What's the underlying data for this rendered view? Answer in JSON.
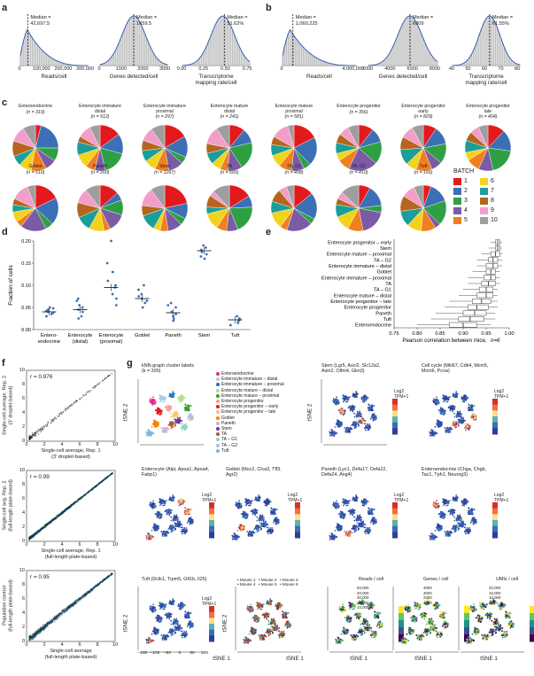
{
  "panel_a": {
    "label": "a",
    "hist1": {
      "median": "Median =\n42,697.5",
      "xlabel": "Reads/cell",
      "ticks": [
        "0",
        "100,000",
        "200,000",
        "300,000"
      ]
    },
    "hist2": {
      "median": "Median =\n1659.5",
      "xlabel": "Genes detected/cell",
      "ticks": [
        "0",
        "1000",
        "2000",
        "3000"
      ]
    },
    "hist3": {
      "median": "Median =\n51.62%",
      "xlabel": "Transcriptome\nmapping rate/cell",
      "ticks": [
        "0.00",
        "0.25",
        "0.50",
        "0.75"
      ]
    }
  },
  "panel_b": {
    "label": "b",
    "hist1": {
      "median": "Median =\n1,060,225",
      "xlabel": "Reads/cell",
      "ticks": [
        "0",
        "4,000,000"
      ]
    },
    "hist2": {
      "median": "Median =\n6009",
      "xlabel": "Genes detected/cell",
      "ticks": [
        "2000",
        "4000",
        "6000",
        "8000"
      ]
    },
    "hist3": {
      "median": "Median =\n61.55%",
      "xlabel": "Transcriptome\nmapping rate/cell",
      "ticks": [
        "40",
        "50",
        "60",
        "70",
        "80"
      ]
    }
  },
  "panel_c": {
    "label": "c",
    "pies": [
      {
        "title": "Enteroendocrine",
        "n": "(n = 310)"
      },
      {
        "title": "Enterocyte immature\ndistal",
        "n": "(n = 512)"
      },
      {
        "title": "Enterocyte immature\nproximal",
        "n": "(n = 297)"
      },
      {
        "title": "Enterocyte mature\ndistal",
        "n": "(n = 241)"
      },
      {
        "title": "Enterocyte mature\nproximal",
        "n": "(n = 581)"
      },
      {
        "title": "Enterocyte progenitor",
        "n": "(n = 356)"
      },
      {
        "title": "Enterocyte progenitor\nearly",
        "n": "(n = 829)"
      },
      {
        "title": "Enterocyte progenitor\nlate",
        "n": "(n = 404)"
      },
      {
        "title": "Goblet",
        "n": "(n = 510)"
      },
      {
        "title": "Paneth",
        "n": "(n = 260)"
      },
      {
        "title": "Stem",
        "n": "(n = 1267)"
      },
      {
        "title": "TA",
        "n": "(n = 665)"
      },
      {
        "title": "TA, G1",
        "n": "(n = 408)"
      },
      {
        "title": "TA, G2",
        "n": "(n = 410)"
      },
      {
        "title": "Tuft",
        "n": "(n = 166)"
      }
    ],
    "legend_title": "BATCH",
    "batches": [
      {
        "label": "1",
        "color": "#e31a1c"
      },
      {
        "label": "2",
        "color": "#3b6fb6"
      },
      {
        "label": "3",
        "color": "#2ea043"
      },
      {
        "label": "4",
        "color": "#7b5aa6"
      },
      {
        "label": "5",
        "color": "#f07f1f"
      },
      {
        "label": "6",
        "color": "#f3d21c"
      },
      {
        "label": "7",
        "color": "#1b9e9a"
      },
      {
        "label": "8",
        "color": "#b5651d"
      },
      {
        "label": "9",
        "color": "#f29ec8"
      },
      {
        "label": "10",
        "color": "#9e9e9e"
      }
    ]
  },
  "chart_data": [
    {
      "type": "scatter",
      "panel": "d",
      "ylabel": "Fraction of cells",
      "ylim": [
        0,
        0.2
      ],
      "yticks": [
        "0.00",
        "0.05",
        "0.10",
        "0.15",
        "0.20"
      ],
      "categories": [
        "Entero-\nendocrine",
        "Enterocyte\n(distal)",
        "Enterocyte\n(proximal)",
        "Goblet",
        "Paneth",
        "Stem",
        "Tuft"
      ],
      "means": [
        0.04,
        0.045,
        0.095,
        0.07,
        0.038,
        0.178,
        0.022
      ],
      "points": [
        [
          0.03,
          0.035,
          0.038,
          0.04,
          0.042,
          0.045,
          0.048,
          0.05
        ],
        [
          0.025,
          0.03,
          0.04,
          0.045,
          0.05,
          0.055,
          0.065,
          0.07
        ],
        [
          0.055,
          0.07,
          0.08,
          0.095,
          0.1,
          0.11,
          0.13,
          0.15,
          0.2
        ],
        [
          0.05,
          0.06,
          0.065,
          0.07,
          0.075,
          0.08,
          0.09,
          0.1
        ],
        [
          0.02,
          0.025,
          0.03,
          0.035,
          0.04,
          0.05,
          0.055,
          0.06
        ],
        [
          0.16,
          0.165,
          0.17,
          0.175,
          0.18,
          0.185,
          0.19
        ],
        [
          0.01,
          0.015,
          0.02,
          0.022,
          0.025,
          0.03
        ]
      ]
    },
    {
      "type": "box",
      "panel": "e",
      "xlabel": "Pearson correlation between mice,",
      "n_label": "n=6",
      "xlim": [
        0.75,
        1.0
      ],
      "xticks": [
        "0.75",
        "0.80",
        "0.85",
        "0.90",
        "0.95",
        "1.00"
      ],
      "categories": [
        "Enterocyte progenitor – early",
        "Stem",
        "Enterocyte mature – proximal",
        "TA – G2",
        "Enterocyte immature – distal",
        "Goblet",
        "Enterocyte immature – proximal",
        "TA",
        "TA – G1",
        "Enterocyte mature – distal",
        "Enterocyte progenitor – late",
        "Enterocyte progenitor",
        "Paneth",
        "Tuft",
        "Enteroendocrine"
      ],
      "boxes": [
        [
          0.96,
          0.97,
          0.975,
          0.98,
          0.985
        ],
        [
          0.955,
          0.97,
          0.975,
          0.98,
          0.985
        ],
        [
          0.94,
          0.96,
          0.97,
          0.98,
          0.985
        ],
        [
          0.93,
          0.955,
          0.965,
          0.975,
          0.985
        ],
        [
          0.93,
          0.95,
          0.965,
          0.975,
          0.985
        ],
        [
          0.92,
          0.95,
          0.96,
          0.97,
          0.98
        ],
        [
          0.91,
          0.945,
          0.96,
          0.97,
          0.98
        ],
        [
          0.91,
          0.94,
          0.955,
          0.97,
          0.98
        ],
        [
          0.9,
          0.935,
          0.95,
          0.965,
          0.975
        ],
        [
          0.89,
          0.93,
          0.95,
          0.965,
          0.975
        ],
        [
          0.87,
          0.92,
          0.94,
          0.96,
          0.975
        ],
        [
          0.86,
          0.91,
          0.93,
          0.955,
          0.975
        ],
        [
          0.84,
          0.9,
          0.925,
          0.95,
          0.97
        ],
        [
          0.83,
          0.89,
          0.915,
          0.945,
          0.97
        ],
        [
          0.8,
          0.87,
          0.9,
          0.93,
          0.96
        ]
      ]
    }
  ],
  "panel_d": {
    "label": "d"
  },
  "panel_e": {
    "label": "e"
  },
  "panel_f": {
    "label": "f",
    "plots": [
      {
        "r": "r = 0.976",
        "ylabel": "Single-cell average, Rep. 2\n(3′ droplet-based)",
        "xlabel": "Single-cell average, Rep. 1\n(3′ droplet-based)"
      },
      {
        "r": "r = 0.99",
        "ylabel": "Single-cell avg. Rep. 2\n(full-length plate-based)",
        "xlabel": "Single-cell average, Rep. 1\n(full-length plate-based)"
      },
      {
        "r": "r = 0.95",
        "ylabel": "Population control\n(full-length plate-based)",
        "xlabel": "Single-cell average\n(full-length plate-based)"
      }
    ],
    "ticks": [
      "0",
      "2",
      "4",
      "6",
      "8",
      "10"
    ]
  },
  "panel_g": {
    "label": "g",
    "knn_title": "kNN-graph cluster labels\n(k = 200)",
    "knn_legend": [
      "Enteroendocrine",
      "Enterocyte immature – distal",
      "Enterocyte immature – proximal",
      "Enterocyte mature – distal",
      "Enterocyte mature – proximal",
      "Enterocyte progenitor",
      "Enterocyte progenitor – early",
      "Enterocyte progenitor – late",
      "Goblet",
      "Paneth",
      "Stem",
      "TA",
      "TA – G1",
      "TA – G2",
      "Tuft"
    ],
    "knn_colors": [
      "#e7298a",
      "#a6cee3",
      "#1f78b4",
      "#b2df8a",
      "#33a02c",
      "#fb9a99",
      "#e31a1c",
      "#fdbf6f",
      "#ff7f00",
      "#cab2d6",
      "#6a3d9a",
      "#b15928",
      "#8dd3c7",
      "#bebada",
      "#80b1d3"
    ],
    "titles": [
      "Stem (Lgr5, Ascl2, Slc12a2,\nAxin2, Olfm4, Gkn3)",
      "Cell cycle (Mki67, Cdk4, Mcm5,\nMcm6, Pcna)",
      "Enterocyte (Alpi, Apoa1, Apoa4,\nFabp1)",
      "Goblet (Muc2, Clca3, Tff3,\nAgr2)",
      "Paneth (Lyz1, Defa17, Defa22,\nDefa24, Ang4)",
      "Enteroendocrine (Chga, Chgb,\nTac1, Tph1, Neurog3)",
      "Tuft (Dclk1, Trpm5, Gfi1b, Il25)"
    ],
    "scale_label": "Log2\nTPM+1",
    "mice": [
      "Mouse 1",
      "Mouse 2",
      "Mouse 3",
      "Mouse 4",
      "Mouse 5",
      "Mouse 6"
    ],
    "reads_title": "Reads / cell",
    "reads_ticks": [
      "50,000",
      "40,000",
      "30,000",
      "20,000",
      "10,000"
    ],
    "genes_title": "Genes / cell",
    "genes_ticks": [
      "4000",
      "3000",
      "2000",
      "1000"
    ],
    "umis_title": "UMIs / cell",
    "umis_ticks": [
      "20,000",
      "15,000",
      "10,000",
      "5000"
    ],
    "xlabel": "tSNE 1",
    "ylabel": "tSNE 2",
    "xticks": [
      "–150",
      "–100",
      "–50",
      "0",
      "50",
      "100"
    ]
  }
}
